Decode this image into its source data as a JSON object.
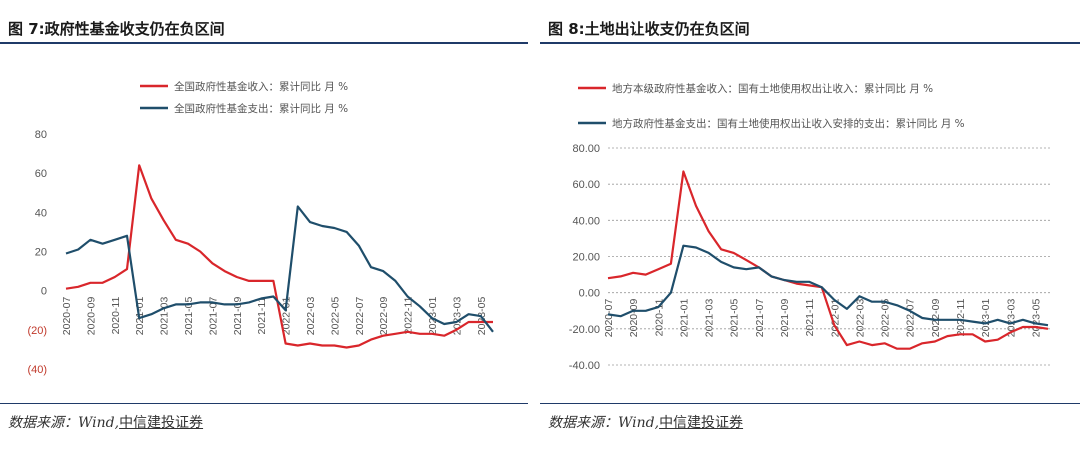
{
  "left": {
    "fig_title": "图 7:政府性基金收支仍在负区间",
    "source_prefix": "数据来源：Wind,",
    "source_brand": "中信建投证券",
    "chart_data": {
      "type": "line",
      "ylim": [
        -40,
        80
      ],
      "yticks": [
        80,
        60,
        40,
        20,
        0,
        -20,
        -40
      ],
      "ytick_labels": [
        "80",
        "60",
        "40",
        "20",
        "0",
        "(20)",
        "(40)"
      ],
      "grid": false,
      "legend_position": "top",
      "x": [
        "2020-07",
        "2020-08",
        "2020-09",
        "2020-10",
        "2020-11",
        "2020-12",
        "2021-01",
        "2021-02",
        "2021-03",
        "2021-04",
        "2021-05",
        "2021-06",
        "2021-07",
        "2021-08",
        "2021-09",
        "2021-10",
        "2021-11",
        "2021-12",
        "2022-01",
        "2022-02",
        "2022-03",
        "2022-04",
        "2022-05",
        "2022-06",
        "2022-07",
        "2022-08",
        "2022-09",
        "2022-10",
        "2022-11",
        "2022-12",
        "2023-01",
        "2023-02",
        "2023-03",
        "2023-04",
        "2023-05",
        "2023-06"
      ],
      "xtick_labels": [
        "2020-07",
        "2020-09",
        "2020-11",
        "2021-01",
        "2021-03",
        "2021-05",
        "2021-07",
        "2021-09",
        "2021-11",
        "2022-01",
        "2022-03",
        "2022-05",
        "2022-07",
        "2022-09",
        "2022-11",
        "2023-01",
        "2023-03",
        "2023-05"
      ],
      "series": [
        {
          "name": "全国政府性基金收入：累计同比 月 %",
          "color": "#d9262b",
          "values": [
            1,
            2,
            4,
            4,
            7,
            11,
            64,
            47,
            36,
            26,
            24,
            20,
            14,
            10,
            7,
            5,
            5,
            5,
            -27,
            -28,
            -27,
            -28,
            -28,
            -29,
            -28,
            -25,
            -23,
            -22,
            -21,
            -22,
            -22,
            -23,
            -20,
            -16,
            -16,
            -16
          ]
        },
        {
          "name": "全国政府性基金支出：累计同比 月 %",
          "color": "#1f4e6b",
          "values": [
            19,
            21,
            26,
            24,
            26,
            28,
            -14,
            -12,
            -9,
            -7,
            -7,
            -6,
            -6,
            -7,
            -7,
            -6,
            -4,
            -3,
            -10,
            43,
            35,
            33,
            32,
            30,
            23,
            12,
            10,
            5,
            -3,
            -8,
            -14,
            -17,
            -16,
            -12,
            -13,
            -21
          ]
        }
      ]
    }
  },
  "right": {
    "fig_title": "图 8:土地出让收支仍在负区间",
    "source_prefix": "数据来源：Wind,",
    "source_brand": "中信建投证券",
    "chart_data": {
      "type": "line",
      "ylim": [
        -40,
        80
      ],
      "yticks": [
        80,
        60,
        40,
        20,
        0,
        -20,
        -40
      ],
      "ytick_labels": [
        "80.00",
        "60.00",
        "40.00",
        "20.00",
        "0.00",
        "-20.00",
        "-40.00"
      ],
      "grid": true,
      "legend_position": "top",
      "x": [
        "2020-07",
        "2020-08",
        "2020-09",
        "2020-10",
        "2020-11",
        "2020-12",
        "2021-01",
        "2021-02",
        "2021-03",
        "2021-04",
        "2021-05",
        "2021-06",
        "2021-07",
        "2021-08",
        "2021-09",
        "2021-10",
        "2021-11",
        "2021-12",
        "2022-01",
        "2022-02",
        "2022-03",
        "2022-04",
        "2022-05",
        "2022-06",
        "2022-07",
        "2022-08",
        "2022-09",
        "2022-10",
        "2022-11",
        "2022-12",
        "2023-01",
        "2023-02",
        "2023-03",
        "2023-04",
        "2023-05",
        "2023-06"
      ],
      "xtick_labels": [
        "2020-07",
        "2020-09",
        "2020-11",
        "2021-01",
        "2021-03",
        "2021-05",
        "2021-07",
        "2021-09",
        "2021-11",
        "2022-01",
        "2022-03",
        "2022-05",
        "2022-07",
        "2022-09",
        "2022-11",
        "2023-01",
        "2023-03",
        "2023-05"
      ],
      "series": [
        {
          "name": "地方本级政府性基金收入：国有土地使用权出让收入：累计同比 月 %",
          "color": "#d9262b",
          "values": [
            8,
            9,
            11,
            10,
            13,
            16,
            67,
            48,
            34,
            24,
            22,
            18,
            14,
            9,
            7,
            5,
            4,
            3,
            -18,
            -29,
            -27,
            -29,
            -28,
            -31,
            -31,
            -28,
            -27,
            -24,
            -23,
            -23,
            -27,
            -26,
            -22,
            -19,
            -19,
            -20
          ]
        },
        {
          "name": "地方政府性基金支出：国有土地使用权出让收入安排的支出：累计同比 月 %",
          "color": "#1f4e6b",
          "values": [
            -12,
            -13,
            -10,
            -10,
            -8,
            0,
            26,
            25,
            22,
            17,
            14,
            13,
            14,
            9,
            7,
            6,
            6,
            3,
            -4,
            -9,
            -2,
            -5,
            -5,
            -7,
            -10,
            -14,
            -15,
            -15,
            -15,
            -16,
            -17,
            -15,
            -17,
            -15,
            -17,
            -18
          ]
        }
      ]
    }
  }
}
